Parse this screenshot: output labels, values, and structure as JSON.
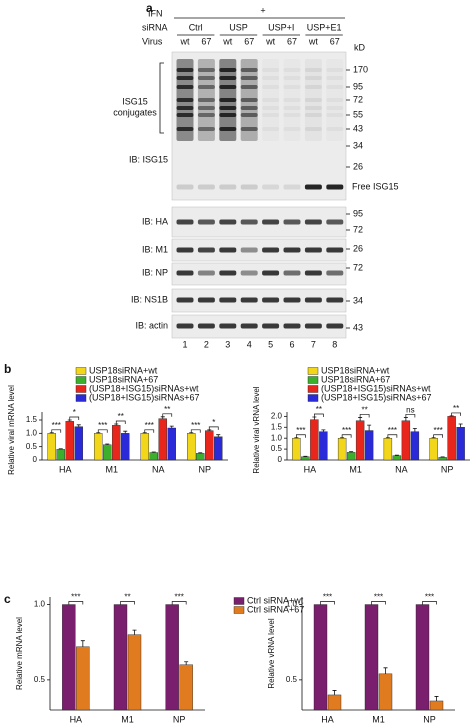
{
  "panel_a": {
    "label": "a",
    "ifn_label": "IFN",
    "ifn_value": "+",
    "sirna_label": "siRNA",
    "sirna_groups": [
      "Ctrl",
      "USP",
      "USP+I",
      "USP+E1"
    ],
    "virus_label": "Virus",
    "virus": [
      "wt",
      "67",
      "wt",
      "67",
      "wt",
      "67",
      "wt",
      "67"
    ],
    "kd_label": "kD",
    "conjugates_label": [
      "ISG15",
      "conjugates"
    ],
    "free_label": "Free ISG15",
    "blots": [
      {
        "label": "IB: ISG15",
        "markers": [
          170,
          95,
          72,
          55,
          43,
          34,
          26
        ]
      },
      {
        "label": "IB: HA",
        "markers": [
          95,
          72
        ]
      },
      {
        "label": "IB: M1",
        "markers": [
          26
        ]
      },
      {
        "label": "IB: NP",
        "markers": [
          72
        ]
      },
      {
        "label": "IB: NS1B",
        "markers": [
          34
        ]
      },
      {
        "label": "IB: actin",
        "markers": [
          43
        ]
      }
    ],
    "lanes": [
      1,
      2,
      3,
      4,
      5,
      6,
      7,
      8
    ]
  },
  "panel_b_label": "b",
  "panel_c_label": "c",
  "chart_data": [
    {
      "type": "bar",
      "ylabel": "Relative viral mRNA level",
      "categories": [
        "HA",
        "M1",
        "NA",
        "NP"
      ],
      "series": [
        {
          "name": "USP18siRNA+wt",
          "color": "#f2d619",
          "values": [
            1,
            1,
            1,
            1
          ],
          "errors": [
            0.02,
            0.02,
            0.02,
            0.02
          ]
        },
        {
          "name": "USP18siRNA+67",
          "color": "#3cb02c",
          "values": [
            0.4,
            0.57,
            0.28,
            0.25
          ],
          "errors": [
            0.02,
            0.03,
            0.02,
            0.02
          ]
        },
        {
          "name": "(USP18+ISG15)siRNAs+wt",
          "color": "#e8261c",
          "values": [
            1.45,
            1.3,
            1.55,
            1.1
          ],
          "errors": [
            0.05,
            0.05,
            0.07,
            0.03
          ]
        },
        {
          "name": "(USP18+ISG15)siRNAs+67",
          "color": "#2a2ad8",
          "values": [
            1.25,
            1.0,
            1.2,
            0.87
          ],
          "errors": [
            0.07,
            0.08,
            0.07,
            0.08
          ]
        }
      ],
      "significance": [
        [
          "***",
          "*"
        ],
        [
          "***",
          "**"
        ],
        [
          "***",
          "**"
        ],
        [
          "***",
          "*"
        ]
      ],
      "ylim": [
        0,
        1.8
      ],
      "yticks": [
        0,
        0.5,
        {
          "value": 1,
          "label": "1.0"
        },
        1.5
      ]
    },
    {
      "type": "bar",
      "ylabel": "Relative viral vRNA level",
      "categories": [
        "HA",
        "M1",
        "NA",
        "NP"
      ],
      "series": [
        {
          "name": "USP18siRNA+wt",
          "color": "#f2d619",
          "values": [
            1,
            1,
            1,
            1
          ],
          "errors": [
            0.02,
            0.02,
            0.02,
            0.02
          ]
        },
        {
          "name": "USP18siRNA+67",
          "color": "#3cb02c",
          "values": [
            0.15,
            0.35,
            0.2,
            0.12
          ],
          "errors": [
            0.02,
            0.03,
            0.02,
            0.02
          ]
        },
        {
          "name": "(USP18+ISG15)siRNAs+wt",
          "color": "#e8261c",
          "values": [
            1.85,
            1.8,
            1.8,
            2.0
          ],
          "errors": [
            0.12,
            0.15,
            0.15,
            0.02
          ]
        },
        {
          "name": "(USP18+ISG15)siRNAs+67",
          "color": "#2a2ad8",
          "values": [
            1.3,
            1.35,
            1.3,
            1.5
          ],
          "errors": [
            0.08,
            0.25,
            0.15,
            0.15
          ]
        }
      ],
      "significance": [
        [
          "***",
          "**"
        ],
        [
          "***",
          "**"
        ],
        [
          "***",
          "ns"
        ],
        [
          "***",
          "**"
        ]
      ],
      "ylim": [
        0,
        2.2
      ],
      "yticks": [
        0,
        0.5,
        {
          "value": 1,
          "label": "1.0"
        },
        1.5,
        {
          "value": 2,
          "label": "2.0"
        }
      ]
    },
    {
      "type": "bar",
      "ylabel": "Relative mRNA level",
      "categories": [
        "HA",
        "M1",
        "NP"
      ],
      "series": [
        {
          "name": "Ctrl siRNA+wt",
          "color": "#7a1f6e",
          "values": [
            1,
            1,
            1
          ]
        },
        {
          "name": "Ctrl siRNA+67",
          "color": "#e07b20",
          "values": [
            0.72,
            0.8,
            0.6
          ],
          "errors": [
            0.04,
            0.03,
            0.02
          ]
        }
      ],
      "significance": [
        [
          "***"
        ],
        [
          "**"
        ],
        [
          "***"
        ]
      ],
      "ylim": [
        0.3,
        1.05
      ],
      "yticks": [
        0.5,
        {
          "value": 1,
          "label": "1.0"
        }
      ]
    },
    {
      "type": "bar",
      "ylabel": "Relative vRNA level",
      "categories": [
        "HA",
        "M1",
        "NP"
      ],
      "series": [
        {
          "color": "#7a1f6e",
          "values": [
            1,
            1,
            1
          ]
        },
        {
          "color": "#e07b20",
          "values": [
            0.4,
            0.54,
            0.36
          ],
          "errors": [
            0.03,
            0.04,
            0.03
          ]
        }
      ],
      "significance": [
        [
          "***"
        ],
        [
          "***"
        ],
        [
          "***"
        ]
      ],
      "ylim": [
        0.3,
        1.05
      ],
      "yticks": [
        0.5,
        {
          "value": 1,
          "label": "1.0"
        }
      ]
    }
  ]
}
